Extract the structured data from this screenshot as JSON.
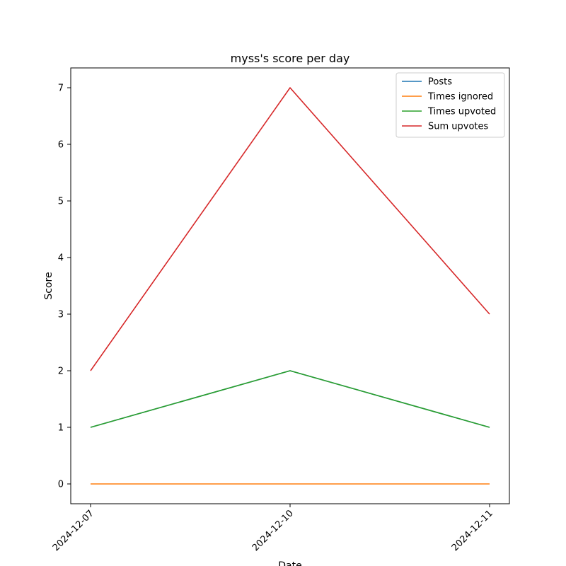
{
  "chart_data": {
    "type": "line",
    "title": "myss's score per day",
    "xlabel": "Date",
    "ylabel": "Score",
    "x": [
      "2024-12-07",
      "2024-12-10",
      "2024-12-11"
    ],
    "ylim": [
      -0.35,
      7.35
    ],
    "yticks": [
      0,
      1,
      2,
      3,
      4,
      5,
      6,
      7
    ],
    "grid": false,
    "legend_position": "top-right",
    "series": [
      {
        "name": "Posts",
        "color": "#1f77b4",
        "values": [
          1,
          2,
          1
        ]
      },
      {
        "name": "Times ignored",
        "color": "#ff7f0e",
        "values": [
          0,
          0,
          0
        ]
      },
      {
        "name": "Times upvoted",
        "color": "#2ca02c",
        "values": [
          1,
          2,
          1
        ]
      },
      {
        "name": "Sum upvotes",
        "color": "#d62728",
        "values": [
          2,
          7,
          3
        ]
      }
    ]
  }
}
